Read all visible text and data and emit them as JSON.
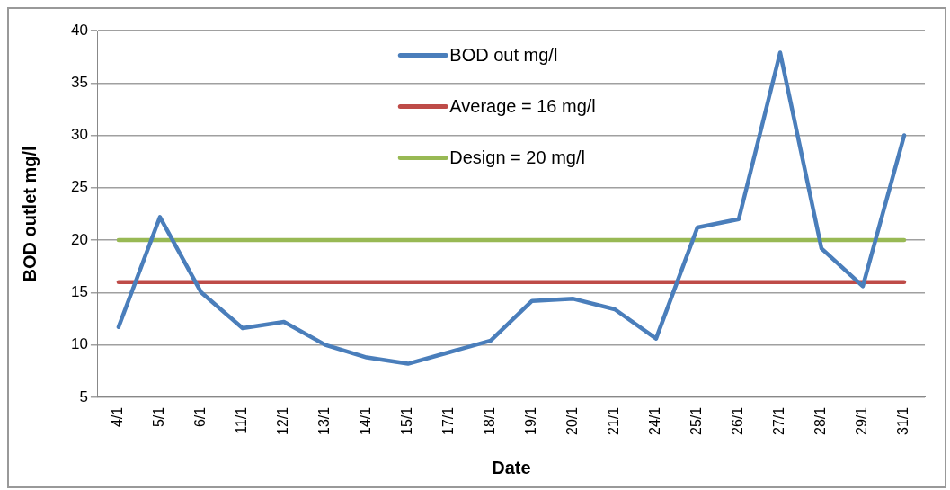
{
  "chart_data": {
    "type": "line",
    "xlabel": "Date",
    "ylabel": "BOD outlet mg/l",
    "categories": [
      "4/1",
      "5/1",
      "6/1",
      "11/1",
      "12/1",
      "13/1",
      "14/1",
      "15/1",
      "17/1",
      "18/1",
      "19/1",
      "20/1",
      "21/1",
      "24/1",
      "25/1",
      "26/1",
      "27/1",
      "28/1",
      "29/1",
      "31/1"
    ],
    "series": [
      {
        "name": "BOD out mg/l",
        "color": "#4a7ebb",
        "values": [
          11.7,
          22.2,
          15,
          11.6,
          12.2,
          10,
          8.8,
          8.2,
          9.3,
          10.4,
          14.2,
          14.4,
          13.4,
          10.6,
          21.2,
          22,
          37.9,
          19.2,
          15.6,
          30
        ]
      },
      {
        "name": "Average = 16 mg/l",
        "color": "#be4b48",
        "values": [
          16,
          16,
          16,
          16,
          16,
          16,
          16,
          16,
          16,
          16,
          16,
          16,
          16,
          16,
          16,
          16,
          16,
          16,
          16,
          16
        ]
      },
      {
        "name": "Design = 20 mg/l",
        "color": "#98b954",
        "values": [
          20,
          20,
          20,
          20,
          20,
          20,
          20,
          20,
          20,
          20,
          20,
          20,
          20,
          20,
          20,
          20,
          20,
          20,
          20,
          20
        ]
      }
    ],
    "ylim": [
      5,
      40
    ],
    "yticks": [
      5,
      10,
      15,
      20,
      25,
      30,
      35,
      40
    ],
    "grid": "y",
    "legend": "top",
    "marker": "none",
    "line_style": "solid"
  }
}
